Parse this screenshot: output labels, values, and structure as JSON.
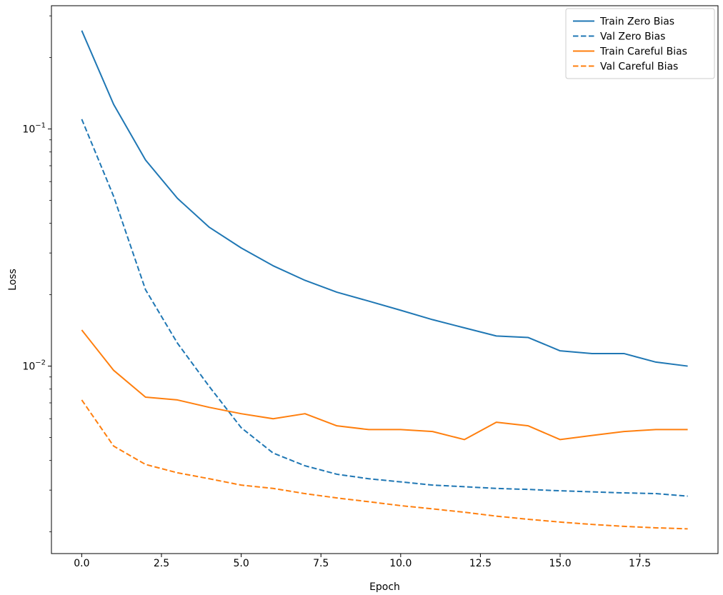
{
  "chart_data": {
    "type": "line",
    "title": "",
    "xlabel": "Epoch",
    "ylabel": "Loss",
    "grid": false,
    "legend_position": "upper right",
    "yscale": "log",
    "xlim": [
      -0.95,
      19.95
    ],
    "ylim": [
      0.00162,
      0.331
    ],
    "x": [
      0,
      1,
      2,
      3,
      4,
      5,
      6,
      7,
      8,
      9,
      10,
      11,
      12,
      13,
      14,
      15,
      16,
      17,
      18,
      19
    ],
    "xticks": [
      0.0,
      2.5,
      5.0,
      7.5,
      10.0,
      12.5,
      15.0,
      17.5
    ],
    "xtick_labels": [
      "0.0",
      "2.5",
      "5.0",
      "7.5",
      "10.0",
      "12.5",
      "15.0",
      "17.5"
    ],
    "yticks_major": [
      0.1,
      0.01
    ],
    "ytick_labels": [
      {
        "base": "10",
        "exp": "−1"
      },
      {
        "base": "10",
        "exp": "−2"
      }
    ],
    "series": [
      {
        "name": "Train Zero Bias",
        "color": "#1f77b4",
        "dash": "solid",
        "values": [
          0.26,
          0.127,
          0.074,
          0.051,
          0.0385,
          0.0315,
          0.0265,
          0.023,
          0.0205,
          0.0188,
          0.0172,
          0.0157,
          0.0145,
          0.0134,
          0.0132,
          0.0116,
          0.0113,
          0.0113,
          0.0104,
          0.01
        ]
      },
      {
        "name": "Val Zero Bias",
        "color": "#1f77b4",
        "dash": "dashed",
        "values": [
          0.11,
          0.052,
          0.021,
          0.0125,
          0.0082,
          0.0055,
          0.0043,
          0.0038,
          0.0035,
          0.00335,
          0.00325,
          0.00315,
          0.0031,
          0.00305,
          0.00302,
          0.00298,
          0.00295,
          0.00292,
          0.0029,
          0.00283
        ]
      },
      {
        "name": "Train Careful Bias",
        "color": "#ff7f0e",
        "dash": "solid",
        "values": [
          0.0142,
          0.0096,
          0.0074,
          0.0072,
          0.0067,
          0.0063,
          0.006,
          0.0063,
          0.0056,
          0.0054,
          0.0054,
          0.0053,
          0.0049,
          0.0058,
          0.0056,
          0.0049,
          0.0051,
          0.0053,
          0.0054,
          0.0054
        ]
      },
      {
        "name": "Val Careful Bias",
        "color": "#ff7f0e",
        "dash": "dashed",
        "values": [
          0.0072,
          0.0046,
          0.00385,
          0.00355,
          0.00335,
          0.00315,
          0.00305,
          0.0029,
          0.00278,
          0.00268,
          0.00258,
          0.0025,
          0.00242,
          0.00233,
          0.00226,
          0.0022,
          0.00215,
          0.00211,
          0.00208,
          0.00206
        ]
      }
    ]
  }
}
